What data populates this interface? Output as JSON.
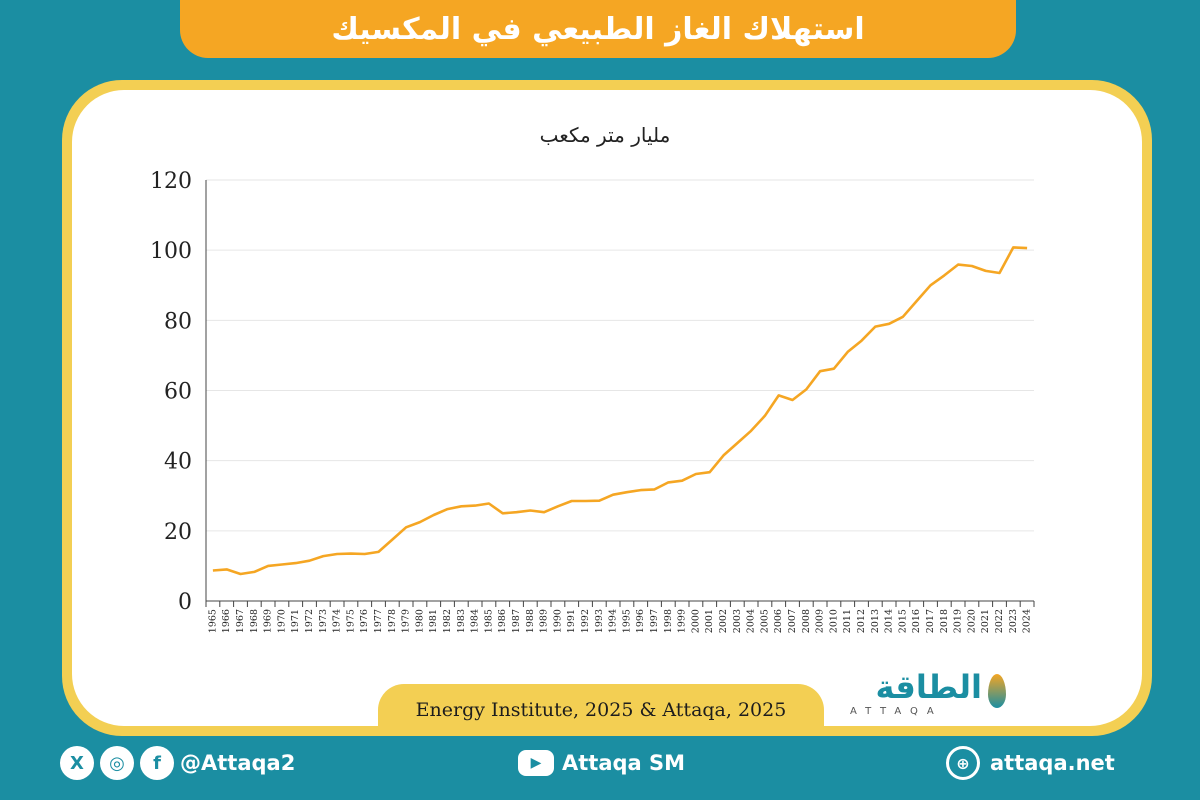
{
  "header": {
    "title": "استهلاك الغاز الطبيعي في المكسيك"
  },
  "chart_data": {
    "type": "line",
    "title": "",
    "ylabel": "مليار متر مكعب",
    "xlabel": "",
    "ylim": [
      0,
      120
    ],
    "yticks": [
      "0",
      "20",
      "40",
      "60",
      "80",
      "100",
      "120"
    ],
    "grid": true,
    "line_color": "#f5a623",
    "x": [
      "1965",
      "1966",
      "1967",
      "1968",
      "1969",
      "1970",
      "1971",
      "1972",
      "1973",
      "1974",
      "1975",
      "1976",
      "1977",
      "1978",
      "1979",
      "1980",
      "1981",
      "1982",
      "1983",
      "1984",
      "1985",
      "1986",
      "1987",
      "1988",
      "1989",
      "1990",
      "1991",
      "1992",
      "1993",
      "1994",
      "1995",
      "1996",
      "1997",
      "1998",
      "1999",
      "2000",
      "2001",
      "2002",
      "2003",
      "2004",
      "2005",
      "2006",
      "2007",
      "2008",
      "2009",
      "2010",
      "2011",
      "2012",
      "2013",
      "2014",
      "2015",
      "2016",
      "2017",
      "2018",
      "2019",
      "2020",
      "2021",
      "2022",
      "2023",
      "2024"
    ],
    "series": [
      {
        "values": [
          8.7,
          9.0,
          7.7,
          8.3,
          10.0,
          10.4,
          10.8,
          11.5,
          12.8,
          13.4,
          13.5,
          13.4,
          14.0,
          17.5,
          21.0,
          22.5,
          24.5,
          26.2,
          27.0,
          27.2,
          27.8,
          25.0,
          25.3,
          25.8,
          25.3,
          27.0,
          28.5,
          28.5,
          28.6,
          30.3,
          31.0,
          31.6,
          31.8,
          33.8,
          34.3,
          36.2,
          36.7,
          41.5,
          45.0,
          48.5,
          52.8,
          58.6,
          57.3,
          60.3,
          65.5,
          66.2,
          71.0,
          74.2,
          78.2,
          79.0,
          81.0,
          85.5,
          90.0,
          92.8,
          95.9,
          95.5,
          94.1,
          93.5,
          100.8,
          100.6
        ]
      }
    ]
  },
  "source": "Energy Institute, 2025 & Attaqa, 2025",
  "logo": {
    "ar": "الطاقة",
    "en": "ATTAQA"
  },
  "footer": {
    "social_handle": "@Attaqa2",
    "youtube_handle": "Attaqa SM",
    "website": "attaqa.net",
    "x_icon_text": "X",
    "facebook_icon_text": "f",
    "instagram_icon_text": "◎"
  }
}
